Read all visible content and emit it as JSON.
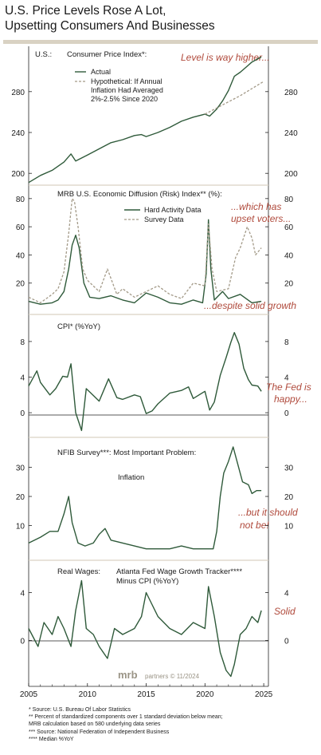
{
  "title_lines": [
    "U.S. Price Levels Rose A Lot,",
    "Upsetting Consumers And Businesses"
  ],
  "footnotes": [
    "*   Source: U.S. Bureau Of Labor Statistics",
    "**  Percent of standardized components over 1 standard deviation below mean;",
    "      MRB calculation based on 580 underlying data series",
    "***  Source: National Federation of Independent Business",
    "****  Median %YoY"
  ],
  "logo": {
    "brand": "mrb",
    "text": "partners © 11/2024"
  },
  "colors": {
    "actual": "#2f5a3a",
    "survey": "#a39a88",
    "annotation": "#b04a3c",
    "rule": "#d9d2c3"
  },
  "x_ticks": [
    "2005",
    "2010",
    "2015",
    "2020",
    "2025"
  ],
  "chart_data": [
    {
      "type": "line",
      "country_label": "U.S.:",
      "title": "Consumer Price Index*:",
      "annotation": "Level is way higher...",
      "yticks_left": [
        "200",
        "240",
        "280"
      ],
      "yticks_right": [
        "200",
        "240",
        "280"
      ],
      "ylim": [
        190,
        315
      ],
      "legend": [
        "Actual",
        "Hypothetical: If Annual",
        "Inflation Had Averaged",
        "2%-2.5% Since 2020"
      ],
      "series": [
        {
          "name": "Actual",
          "style": "solid",
          "x": [
            2005.0,
            2006.0,
            2007.0,
            2008.0,
            2008.6,
            2009.0,
            2010.0,
            2011.0,
            2012.0,
            2013.0,
            2014.0,
            2014.6,
            2015.0,
            2016.0,
            2017.0,
            2018.0,
            2019.0,
            2020.0,
            2020.4,
            2021.0,
            2021.5,
            2022.0,
            2022.5,
            2023.0,
            2023.5,
            2024.0,
            2024.8
          ],
          "values": [
            191,
            198,
            203,
            211,
            219,
            212,
            218,
            224,
            230,
            233,
            237,
            238,
            236,
            240,
            245,
            251,
            255,
            258,
            256,
            263,
            271,
            281,
            295,
            299,
            304,
            309,
            314
          ]
        },
        {
          "name": "Hypothetical: If Annual Inflation Had Averaged 2%-2.5% Since 2020",
          "style": "dashed",
          "x": [
            2020.0,
            2021.0,
            2022.0,
            2023.0,
            2024.0,
            2025.0
          ],
          "values": [
            258,
            264,
            270,
            276,
            283,
            290
          ]
        }
      ]
    },
    {
      "type": "line",
      "title": "MRB U.S. Economic Diffusion (Risk) Index** (%):",
      "annotations": [
        "...which has",
        "upset voters...",
        "...despite solid growth"
      ],
      "yticks_left": [
        "20",
        "40",
        "60",
        "80"
      ],
      "yticks_right": [
        "20",
        "40",
        "60",
        "80"
      ],
      "ylim": [
        0,
        85
      ],
      "legend": [
        "Hard Activity Data",
        "Survey Data"
      ],
      "series": [
        {
          "name": "Hard Activity Data",
          "style": "solid",
          "x": [
            2005.0,
            2006.0,
            2007.0,
            2007.5,
            2008.0,
            2008.4,
            2008.7,
            2009.0,
            2009.3,
            2009.7,
            2010.2,
            2011.0,
            2012.0,
            2013.0,
            2014.0,
            2015.0,
            2016.0,
            2017.0,
            2018.0,
            2019.0,
            2019.8,
            2020.1,
            2020.3,
            2020.5,
            2020.8,
            2021.5,
            2022.0,
            2023.0,
            2024.0,
            2024.8
          ],
          "values": [
            7,
            5,
            6,
            8,
            14,
            30,
            47,
            54,
            45,
            20,
            10,
            9,
            11,
            8,
            6,
            13,
            10,
            6,
            5,
            8,
            6,
            26,
            65,
            30,
            8,
            14,
            9,
            12,
            6,
            7
          ]
        },
        {
          "name": "Survey Data",
          "style": "dashed",
          "x": [
            2005.0,
            2006.0,
            2007.0,
            2007.5,
            2008.0,
            2008.4,
            2008.7,
            2008.9,
            2009.2,
            2009.6,
            2010.0,
            2011.0,
            2011.7,
            2012.5,
            2013.0,
            2014.0,
            2015.0,
            2016.0,
            2017.0,
            2018.0,
            2019.0,
            2020.0,
            2020.3,
            2020.6,
            2021.0,
            2022.0,
            2022.6,
            2023.0,
            2023.6,
            2024.0,
            2024.3,
            2024.8
          ],
          "values": [
            10,
            6,
            12,
            16,
            28,
            55,
            80,
            78,
            60,
            30,
            22,
            14,
            30,
            12,
            16,
            10,
            14,
            18,
            12,
            9,
            20,
            18,
            62,
            30,
            14,
            16,
            38,
            45,
            60,
            52,
            40,
            45
          ]
        }
      ]
    },
    {
      "type": "line",
      "title": "CPI* (%YoY)",
      "annotations": [
        "The Fed is",
        "happy..."
      ],
      "yticks_left": [
        "0",
        "4",
        "8"
      ],
      "yticks_right": [
        "0",
        "4",
        "8"
      ],
      "ylim": [
        -2.5,
        10.5
      ],
      "series": [
        {
          "name": "CPI %YoY",
          "style": "solid",
          "x": [
            2005.0,
            2005.7,
            2006.0,
            2006.8,
            2007.3,
            2007.9,
            2008.3,
            2008.6,
            2009.0,
            2009.5,
            2009.9,
            2010.3,
            2011.0,
            2011.8,
            2012.5,
            2013.0,
            2014.0,
            2014.5,
            2015.0,
            2015.5,
            2016.0,
            2017.0,
            2018.0,
            2018.6,
            2019.0,
            2020.0,
            2020.4,
            2020.8,
            2021.3,
            2021.8,
            2022.2,
            2022.5,
            2022.9,
            2023.3,
            2023.7,
            2024.0,
            2024.5,
            2024.8
          ],
          "values": [
            3.0,
            4.7,
            3.4,
            2.0,
            2.7,
            4.1,
            4.0,
            5.5,
            0.0,
            -2.0,
            2.7,
            2.2,
            1.3,
            3.8,
            1.7,
            1.5,
            2.0,
            1.8,
            -0.1,
            0.2,
            1.0,
            2.2,
            2.5,
            2.9,
            1.6,
            2.4,
            0.3,
            1.2,
            4.2,
            6.2,
            7.9,
            9.0,
            7.7,
            5.0,
            3.7,
            3.1,
            3.0,
            2.4
          ]
        }
      ]
    },
    {
      "type": "line",
      "title": "NFIB Survey***: Most Important Problem:",
      "subtitle": "Inflation",
      "annotations": [
        "...but it should",
        "not be!"
      ],
      "yticks_left": [
        "10",
        "20",
        "30"
      ],
      "yticks_right": [
        "10",
        "20",
        "30"
      ],
      "ylim": [
        0,
        37
      ],
      "series": [
        {
          "name": "Inflation",
          "style": "solid",
          "x": [
            2005.0,
            2006.0,
            2006.8,
            2007.5,
            2008.0,
            2008.4,
            2008.7,
            2009.2,
            2009.8,
            2010.5,
            2011.0,
            2011.5,
            2012.0,
            2013.0,
            2014.0,
            2015.0,
            2016.0,
            2017.0,
            2018.0,
            2019.0,
            2020.0,
            2020.7,
            2021.0,
            2021.3,
            2021.6,
            2022.0,
            2022.4,
            2022.8,
            2023.2,
            2023.7,
            2024.0,
            2024.4,
            2024.8
          ],
          "values": [
            4,
            6,
            8,
            8,
            14,
            20,
            11,
            4,
            3,
            4,
            7,
            9,
            5,
            4,
            3,
            2,
            2,
            2,
            3,
            2,
            2,
            2,
            8,
            20,
            28,
            32,
            37,
            31,
            25,
            24,
            21,
            22,
            22
          ]
        }
      ]
    },
    {
      "type": "line",
      "title": "Real Wages:",
      "title2": "Atlanta Fed Wage Growth Tracker****",
      "title3": "Minus CPI (%YoY)",
      "annotation": "Solid",
      "yticks_left": [
        "0",
        "4"
      ],
      "yticks_right": [
        "0",
        "4"
      ],
      "ylim": [
        -3.5,
        5.5
      ],
      "series": [
        {
          "name": "Real Wages",
          "style": "solid",
          "x": [
            2005.0,
            2005.8,
            2006.3,
            2007.0,
            2007.5,
            2008.0,
            2008.6,
            2009.0,
            2009.5,
            2009.9,
            2010.5,
            2011.0,
            2011.7,
            2012.3,
            2013.0,
            2014.0,
            2014.6,
            2015.0,
            2015.5,
            2016.0,
            2017.0,
            2018.0,
            2019.0,
            2020.0,
            2020.3,
            2020.8,
            2021.3,
            2021.8,
            2022.2,
            2022.5,
            2023.0,
            2023.5,
            2024.0,
            2024.5,
            2024.8
          ],
          "values": [
            1.0,
            -0.5,
            1.5,
            0.5,
            2.0,
            1.0,
            -0.5,
            2.5,
            5.0,
            1.0,
            0.5,
            -0.5,
            -1.5,
            1.0,
            0.5,
            1.0,
            2.0,
            4.0,
            3.0,
            2.0,
            1.0,
            0.5,
            1.5,
            1.0,
            4.5,
            2.0,
            -1.0,
            -2.5,
            -3.0,
            -2.0,
            0.5,
            1.0,
            2.0,
            1.5,
            2.5
          ]
        }
      ]
    }
  ]
}
